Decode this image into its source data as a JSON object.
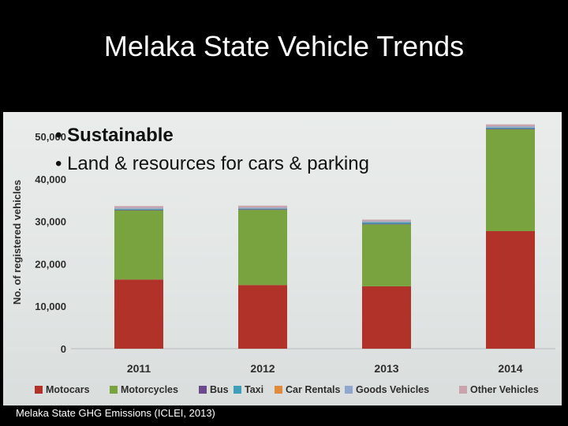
{
  "slide": {
    "title": "Melaka State Vehicle Trends",
    "bullets": [
      "• Sustainable",
      "• Land & resources for cars & parking"
    ],
    "source": "Melaka State GHG Emissions (ICLEI, 2013)"
  },
  "chart_data": {
    "type": "bar",
    "stacked": true,
    "title": "",
    "xlabel": "",
    "ylabel": "No. of registered vehicles",
    "ylim": [
      0,
      50000
    ],
    "yticks": [
      0,
      10000,
      20000,
      30000,
      40000,
      50000
    ],
    "ytick_labels": [
      "0",
      "10,000",
      "20,000",
      "30,000",
      "40,000",
      "50,000"
    ],
    "categories": [
      "2011",
      "2012",
      "2013",
      "2014"
    ],
    "legend_position": "bottom",
    "grid": false,
    "series": [
      {
        "name": "Motocars",
        "color": "#b03228",
        "values": [
          16300,
          15000,
          14700,
          27700
        ]
      },
      {
        "name": "Motorcycles",
        "color": "#78a33e",
        "values": [
          16300,
          17700,
          14600,
          24000
        ]
      },
      {
        "name": "Bus",
        "color": "#6a4a8c",
        "values": [
          150,
          150,
          150,
          150
        ]
      },
      {
        "name": "Taxi",
        "color": "#3f9fb8",
        "values": [
          150,
          150,
          300,
          200
        ]
      },
      {
        "name": "Car Rentals",
        "color": "#e08a3c",
        "values": [
          50,
          50,
          50,
          50
        ]
      },
      {
        "name": "Goods Vehicles",
        "color": "#8fa7cf",
        "values": [
          250,
          200,
          250,
          300
        ]
      },
      {
        "name": "Other Vehicles",
        "color": "#c9a4ad",
        "values": [
          400,
          450,
          350,
          450
        ]
      }
    ]
  }
}
